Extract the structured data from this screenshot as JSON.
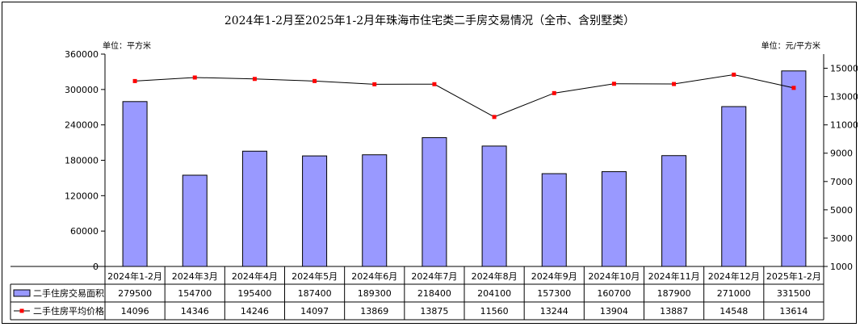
{
  "chart_data": {
    "type": "bar",
    "title": "2024年1-2月至2025年1-2月年珠海市住宅类二手房交易情况（全市、含别墅类）",
    "left_unit": "单位：平方米",
    "right_unit": "单位：元/平方米",
    "categories": [
      "2024年1-2月",
      "2024年3月",
      "2024年4月",
      "2024年5月",
      "2024年6月",
      "2024年7月",
      "2024年8月",
      "2024年9月",
      "2024年10月",
      "2024年11月",
      "2024年12月",
      "2025年1-2月"
    ],
    "series": [
      {
        "name": "二手住房交易面积",
        "type": "bar",
        "axis": "left",
        "color": "#9999ff",
        "values": [
          279500,
          154700,
          195400,
          187400,
          189300,
          218400,
          204100,
          157300,
          160700,
          187900,
          271000,
          331500
        ]
      },
      {
        "name": "二手住房平均价格",
        "type": "line",
        "axis": "right",
        "color": "#ff0000",
        "line_color": "#000000",
        "values": [
          14096,
          14346,
          14246,
          14097,
          13869,
          13875,
          11560,
          13244,
          13904,
          13887,
          14548,
          13614
        ]
      }
    ],
    "left_axis": {
      "ylim": [
        0,
        360000
      ],
      "ticks": [
        "0",
        "60000",
        "120000",
        "180000",
        "240000",
        "300000",
        "360000"
      ]
    },
    "right_axis": {
      "ylim": [
        1000,
        16000
      ],
      "ticks": [
        "1000",
        "3000",
        "5000",
        "7000",
        "9000",
        "11000",
        "13000",
        "15000"
      ]
    },
    "grid": false,
    "legend": "data-table"
  }
}
